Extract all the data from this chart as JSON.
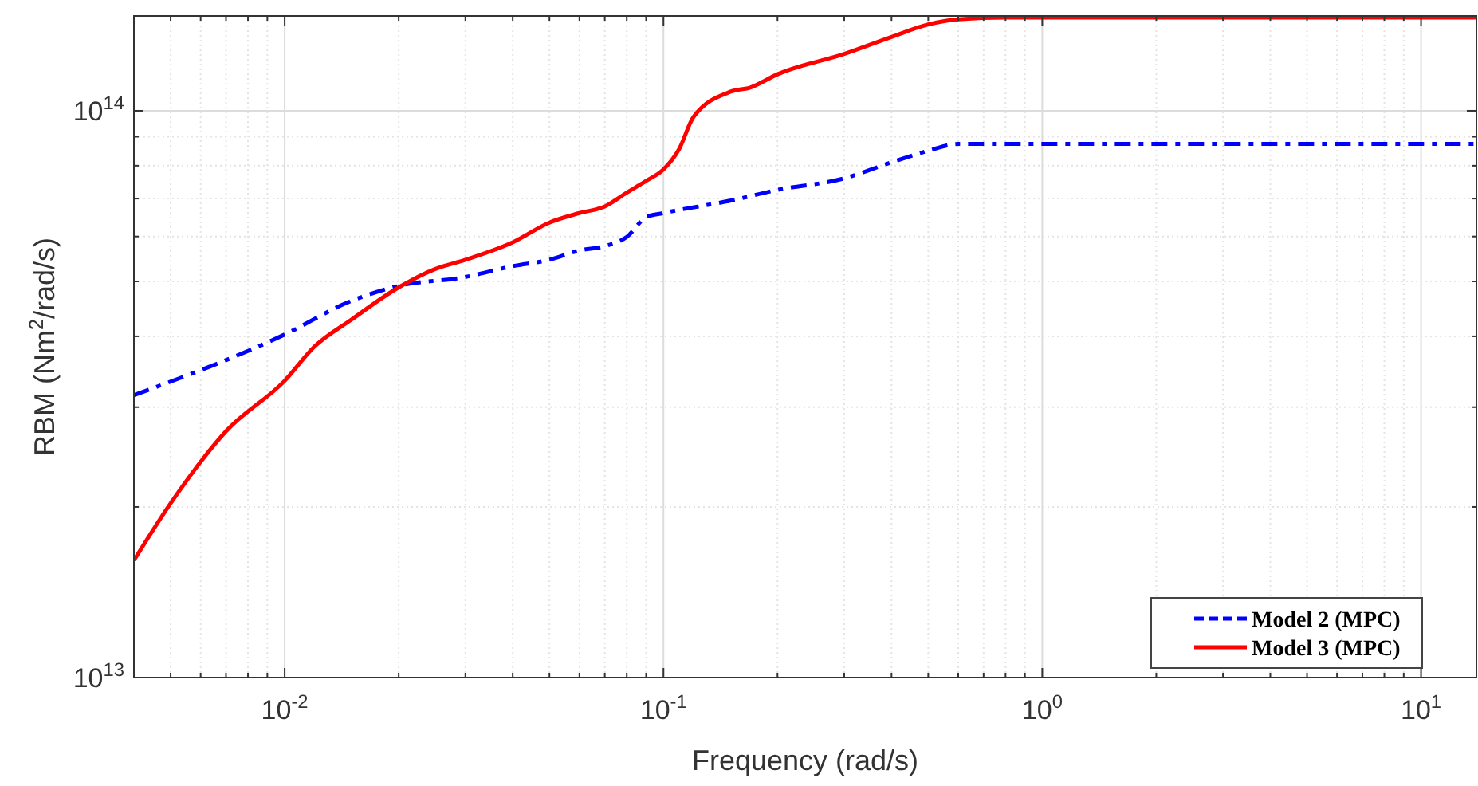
{
  "chart_data": {
    "type": "line",
    "xlabel": "Frequency (rad/s)",
    "ylabel": "RBM (Nm$^{2}$/rad/s)",
    "log": "xy",
    "grid": true,
    "legend": "bottom right",
    "xlim": [
      0.004,
      14
    ],
    "ylim": [
      10000000000000.0,
      147000000000000.0
    ],
    "xticks": [
      {
        "value": 0.005,
        "label": null
      },
      {
        "value": 0.006,
        "label": null
      },
      {
        "value": 0.007,
        "label": null
      },
      {
        "value": 0.008,
        "label": null
      },
      {
        "value": 0.009,
        "label": null
      },
      {
        "value": 0.01,
        "label": "10$^{-2}$"
      },
      {
        "value": 0.02,
        "label": null
      },
      {
        "value": 0.03,
        "label": null
      },
      {
        "value": 0.04,
        "label": null
      },
      {
        "value": 0.05,
        "label": null
      },
      {
        "value": 0.06,
        "label": null
      },
      {
        "value": 0.07,
        "label": null
      },
      {
        "value": 0.08,
        "label": null
      },
      {
        "value": 0.09,
        "label": null
      },
      {
        "value": 0.1,
        "label": "10$^{-1}$"
      },
      {
        "value": 0.2,
        "label": null
      },
      {
        "value": 0.3,
        "label": null
      },
      {
        "value": 0.4,
        "label": null
      },
      {
        "value": 0.5,
        "label": null
      },
      {
        "value": 0.6,
        "label": null
      },
      {
        "value": 0.7,
        "label": null
      },
      {
        "value": 0.8,
        "label": null
      },
      {
        "value": 0.9,
        "label": null
      },
      {
        "value": 1,
        "label": "10$^{0}$"
      },
      {
        "value": 2,
        "label": null
      },
      {
        "value": 3,
        "label": null
      },
      {
        "value": 4,
        "label": null
      },
      {
        "value": 5,
        "label": null
      },
      {
        "value": 6,
        "label": null
      },
      {
        "value": 7,
        "label": null
      },
      {
        "value": 8,
        "label": null
      },
      {
        "value": 9,
        "label": null
      },
      {
        "value": 10,
        "label": "10$^{1}$"
      }
    ],
    "yticks": [
      {
        "value": 10000000000000.0,
        "label": "10$^{13}$"
      },
      {
        "value": 20000000000000.0,
        "label": null
      },
      {
        "value": 30000000000000.0,
        "label": null
      },
      {
        "value": 40000000000000.0,
        "label": null
      },
      {
        "value": 50000000000000.0,
        "label": null
      },
      {
        "value": 60000000000000.0,
        "label": null
      },
      {
        "value": 70000000000000.0,
        "label": null
      },
      {
        "value": 80000000000000.0,
        "label": null
      },
      {
        "value": 90000000000000.0,
        "label": null
      },
      {
        "value": 100000000000000.0,
        "label": "10$^{14}$"
      }
    ],
    "series": [
      {
        "name": "Model 2 (MPC)",
        "color": "#0000ff",
        "line_style": "dashed",
        "x": [
          0.004,
          0.01,
          0.015,
          0.02,
          0.03,
          0.04,
          0.05,
          0.06,
          0.07,
          0.08,
          0.09,
          0.1,
          0.15,
          0.2,
          0.3,
          0.4,
          0.5,
          0.6,
          1,
          14
        ],
        "values": [
          31500000000000.0,
          40300000000000.0,
          46200000000000.0,
          49100000000000.0,
          50900000000000.0,
          53200000000000.0,
          54600000000000.0,
          56700000000000.0,
          57700000000000.0,
          59900000000000.0,
          64900000000000.0,
          66000000000000.0,
          69400000000000.0,
          72500000000000.0,
          76000000000000.0,
          81100000000000.0,
          85000000000000.0,
          87400000000000.0,
          87400000000000.0,
          87400000000000.0
        ]
      },
      {
        "name": "Model 3 (MPC)",
        "color": "#ff0000",
        "line_style": "solid",
        "x": [
          0.004,
          0.005,
          0.007,
          0.01,
          0.012,
          0.015,
          0.02,
          0.025,
          0.03,
          0.04,
          0.05,
          0.06,
          0.07,
          0.08,
          0.09,
          0.1,
          0.11,
          0.12,
          0.15,
          0.17,
          0.2,
          0.3,
          0.4,
          0.5,
          0.6,
          0.8,
          1,
          14
        ],
        "values": [
          16100000000000.0,
          20300000000000.0,
          27200000000000.0,
          33400000000000.0,
          38400000000000.0,
          42800000000000.0,
          48800000000000.0,
          52600000000000.0,
          54600000000000.0,
          58600000000000.0,
          63500000000000.0,
          66000000000000.0,
          67800000000000.0,
          71700000000000.0,
          75200000000000.0,
          78800000000000.0,
          85600000000000.0,
          97500000000000.0,
          108000000000000.0,
          110000000000000.0,
          116000000000000.0,
          126000000000000.0,
          135000000000000.0,
          142000000000000.0,
          145000000000000.0,
          146000000000000.0,
          146000000000000.0,
          146000000000000.0
        ]
      }
    ]
  }
}
